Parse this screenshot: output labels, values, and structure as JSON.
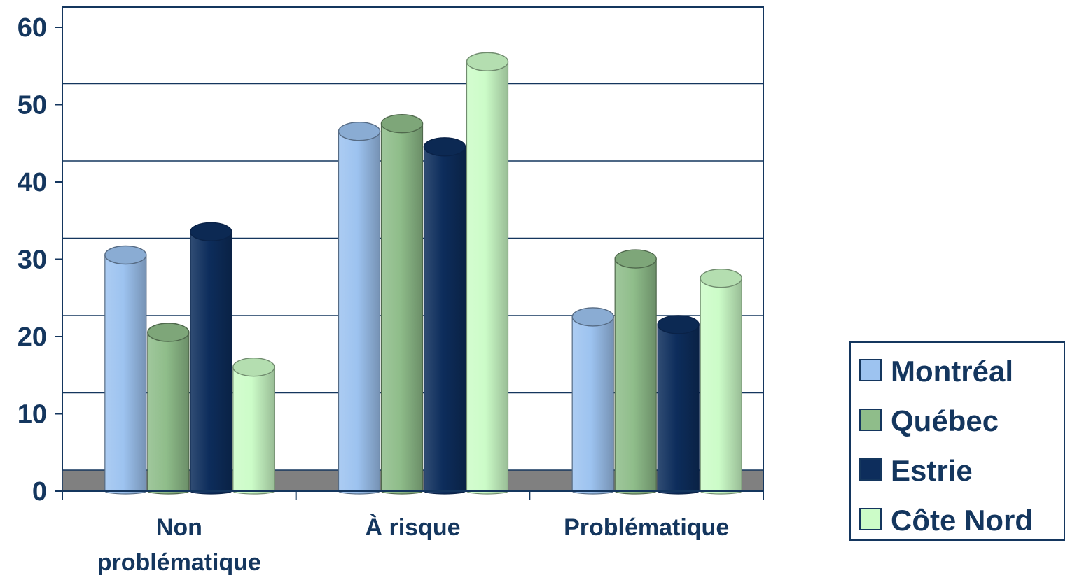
{
  "chart_data": {
    "type": "bar",
    "style": "3d-cylinder",
    "title": "",
    "xlabel": "",
    "ylabel": "",
    "ylim": [
      0,
      60
    ],
    "yticks": [
      0,
      10,
      20,
      30,
      40,
      50,
      60
    ],
    "grid": true,
    "legend_position": "right",
    "categories": [
      [
        "Non",
        "problématique"
      ],
      [
        "À risque"
      ],
      [
        "Problématique"
      ]
    ],
    "series": [
      {
        "name": "Montréal",
        "values": [
          30,
          46,
          22
        ],
        "color": "#9dc3f0"
      },
      {
        "name": "Québec",
        "values": [
          20,
          47,
          29.5
        ],
        "color": "#8fbd8a"
      },
      {
        "name": "Estrie",
        "values": [
          33,
          44,
          21
        ],
        "color": "#0d2d5c"
      },
      {
        "name": "Côte Nord",
        "values": [
          15.5,
          55,
          27
        ],
        "color": "#ccfcc8"
      }
    ],
    "colors": {
      "floor": "#808080",
      "axis": "#14365e",
      "text": "#14365e"
    }
  }
}
